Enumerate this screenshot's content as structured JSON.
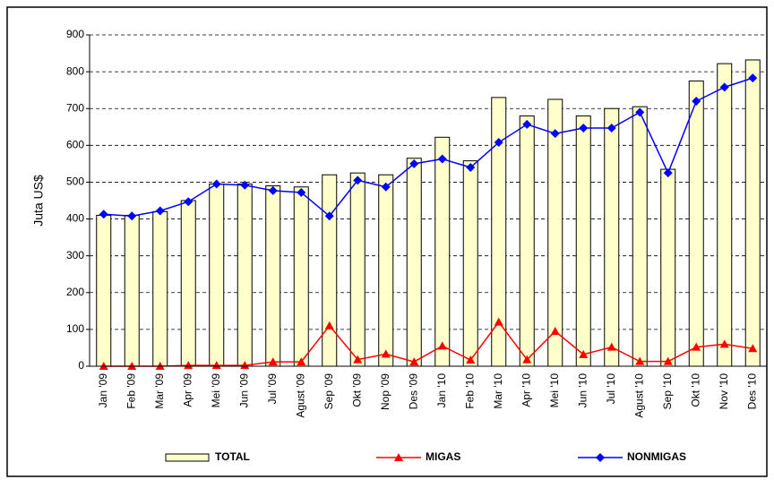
{
  "chart_data": {
    "type": "combo",
    "y_label": "Juta US$",
    "categories": [
      "Jan '09",
      "Feb '09",
      "Mar '09",
      "Apr '09",
      "Mei '09",
      "Jun '09",
      "Jul '09",
      "Agust '09",
      "Sep '09",
      "Okt '09",
      "Nop '09",
      "Des '09",
      "Jan '10",
      "Feb '10",
      "Mar '10",
      "Apr '10",
      "Mei '10",
      "Jun '10",
      "Jul '10",
      "Agust '10",
      "Sep '10",
      "Okt '10",
      "Nov '10",
      "Des '10"
    ],
    "series": [
      {
        "name": "TOTAL",
        "type": "bar",
        "color": "#ffffcc",
        "values": [
          410,
          410,
          420,
          450,
          495,
          495,
          490,
          487,
          520,
          525,
          520,
          565,
          622,
          558,
          730,
          680,
          725,
          680,
          700,
          705,
          535,
          775,
          822,
          832
        ]
      },
      {
        "name": "MIGAS",
        "type": "line",
        "marker": "triangle",
        "color": "#ff0000",
        "values": [
          0,
          0,
          0,
          2,
          2,
          2,
          12,
          12,
          110,
          18,
          33,
          12,
          55,
          17,
          120,
          18,
          95,
          32,
          52,
          13,
          13,
          52,
          60,
          48
        ]
      },
      {
        "name": "NONMIGAS",
        "type": "line",
        "marker": "diamond",
        "color": "#0000ff",
        "values": [
          413,
          408,
          422,
          447,
          495,
          492,
          477,
          472,
          408,
          505,
          487,
          550,
          563,
          540,
          608,
          657,
          632,
          647,
          647,
          690,
          525,
          720,
          758,
          783
        ]
      }
    ],
    "ylim": [
      0,
      900
    ],
    "yticks": [
      0,
      100,
      200,
      300,
      400,
      500,
      600,
      700,
      800,
      900
    ],
    "grid": true
  }
}
